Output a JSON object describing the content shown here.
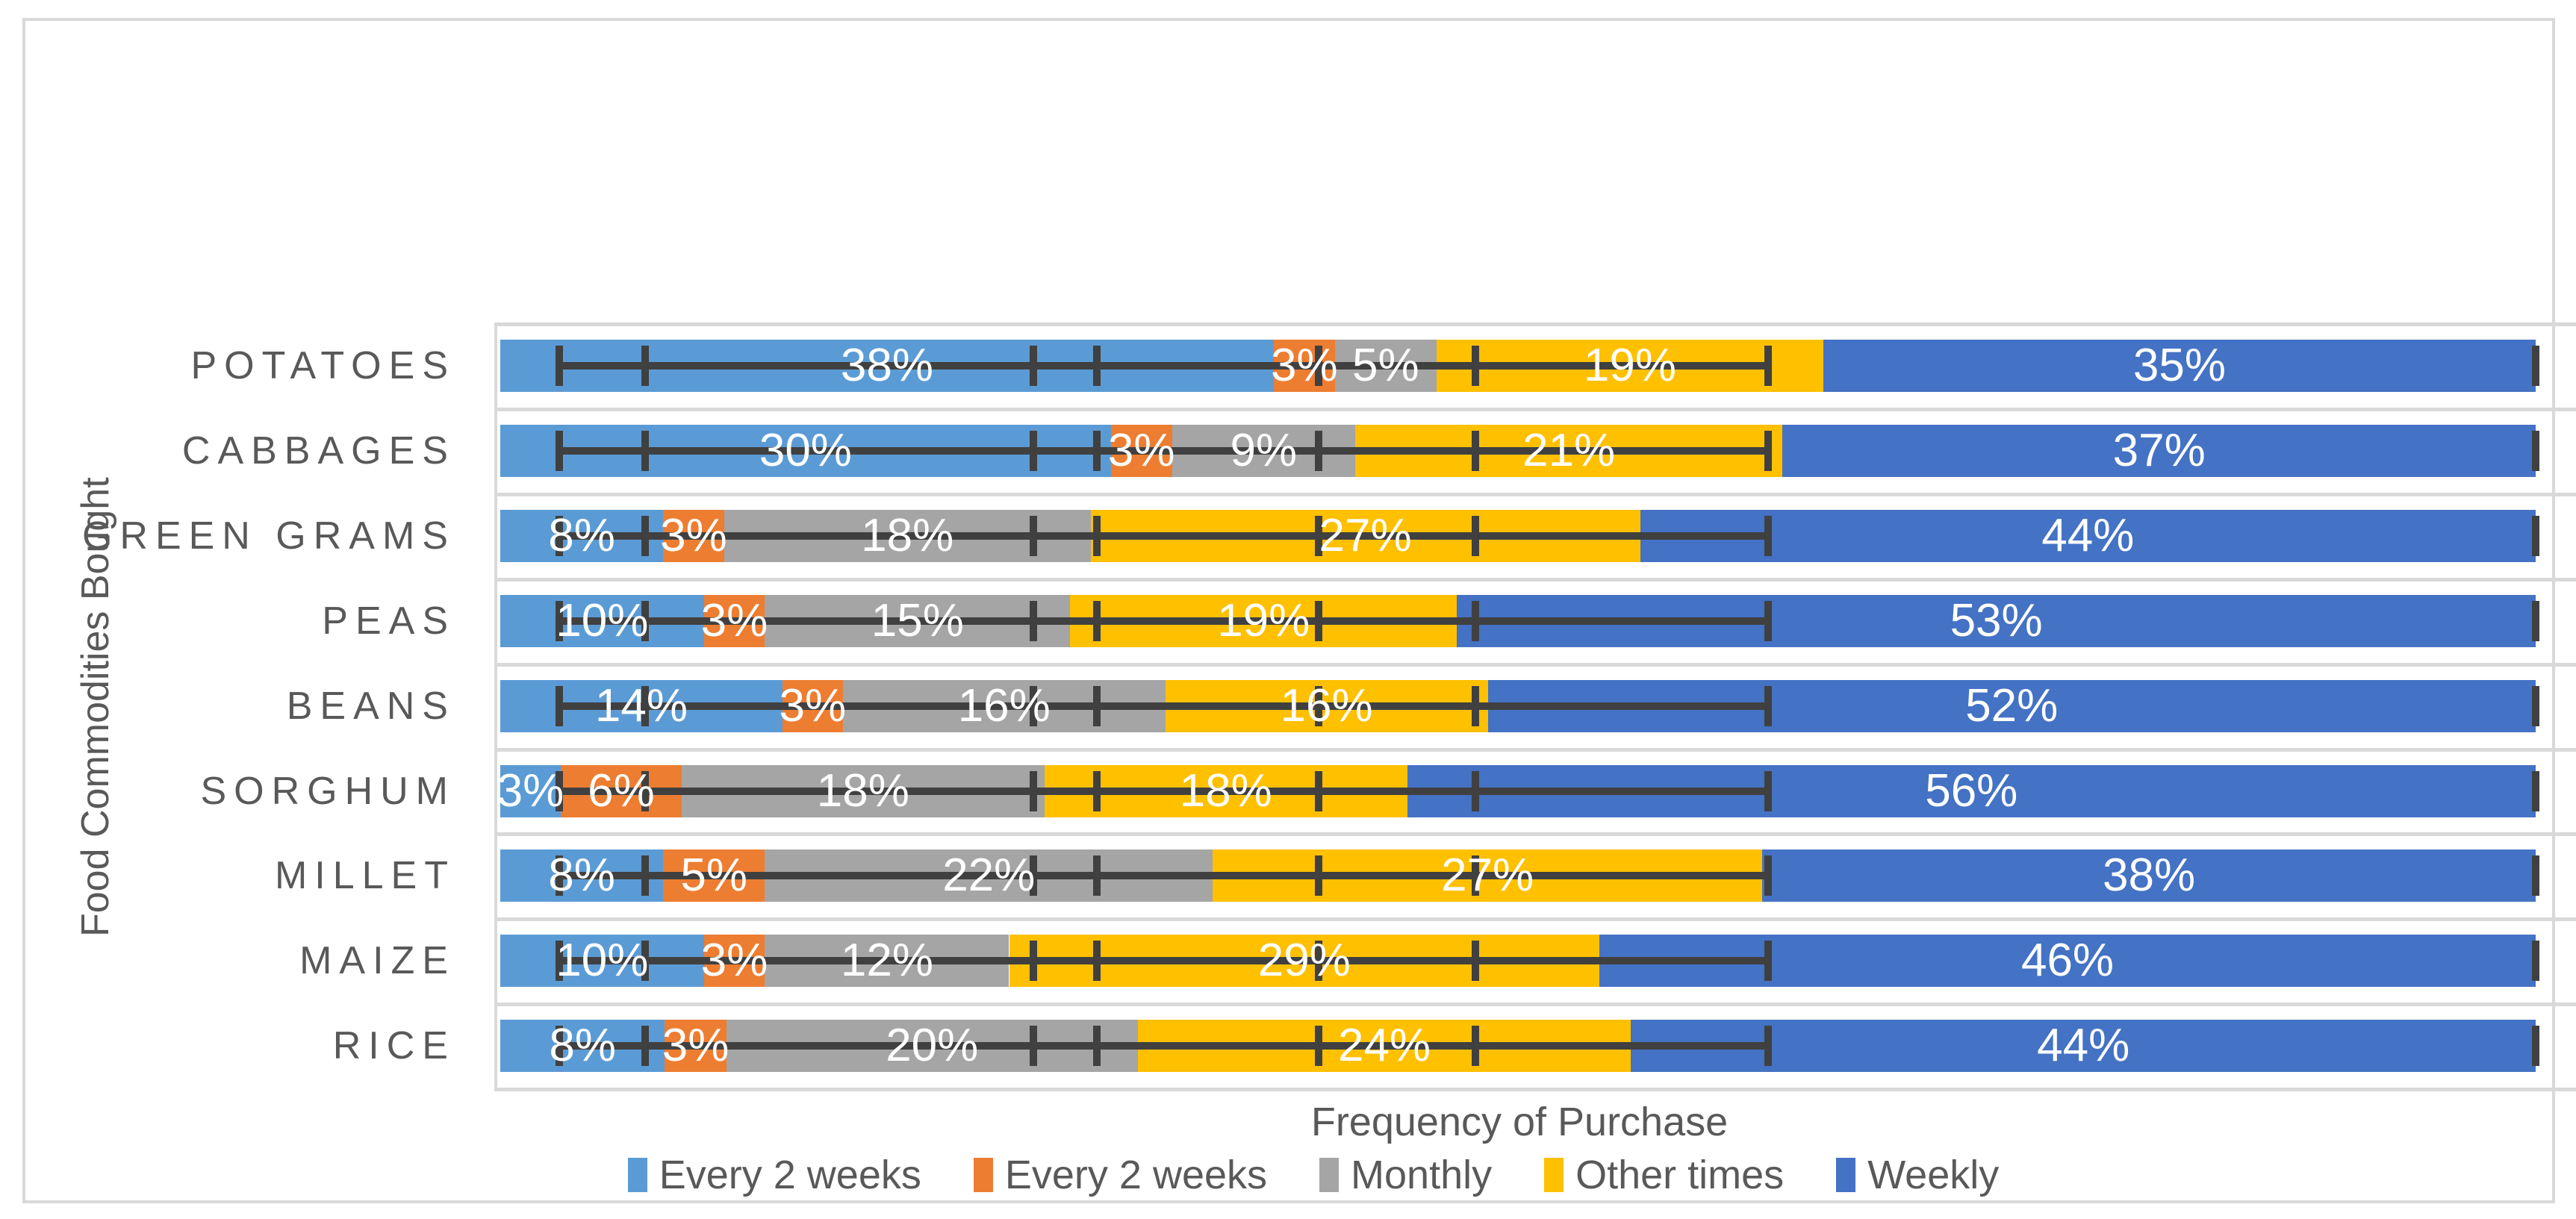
{
  "chart_data": {
    "type": "bar",
    "orientation": "horizontal-stacked",
    "title": "",
    "xlabel": "Frequency of Purchase",
    "ylabel": "Food Commodities Bought",
    "categories": [
      "POTATOES",
      "CABBAGES",
      "GREEN GRAMS",
      "PEAS",
      "BEANS",
      "SORGHUM",
      "MILLET",
      "MAIZE",
      "RICE"
    ],
    "series": [
      {
        "name": "Every 2 weeks",
        "color": "#5B9BD5",
        "values": [
          38,
          30,
          8,
          10,
          14,
          3,
          8,
          10,
          8
        ]
      },
      {
        "name": "Every 2 weeks",
        "color": "#ED7D31",
        "values": [
          3,
          3,
          3,
          3,
          3,
          6,
          5,
          3,
          3
        ]
      },
      {
        "name": "Monthly",
        "color": "#A5A5A5",
        "values": [
          5,
          9,
          18,
          15,
          16,
          18,
          22,
          12,
          20
        ]
      },
      {
        "name": "Other times",
        "color": "#FFC000",
        "values": [
          19,
          21,
          27,
          19,
          16,
          18,
          27,
          29,
          24
        ]
      },
      {
        "name": "Weekly",
        "color": "#4472C4",
        "values": [
          35,
          37,
          44,
          53,
          52,
          56,
          38,
          46,
          44
        ]
      }
    ],
    "data_label_format": "{value}%",
    "data_label_color": "#FFFFFF",
    "xlim": [
      0,
      102
    ],
    "grid": "horizontal-band-lines",
    "legend_position": "bottom",
    "error_bars": {
      "color": "#404040",
      "line_span_pct": [
        2.9,
        62.3
      ],
      "cap_positions_pct": [
        2.9,
        7.1,
        26.2,
        29.3,
        40.2,
        47.9,
        62.3,
        100
      ]
    },
    "colors": {
      "background": "#FFFFFF",
      "border": "#D9D9D9",
      "gridline": "#D9D9D9",
      "axis_line": "#D9D9D9",
      "axis_text": "#595959"
    }
  }
}
